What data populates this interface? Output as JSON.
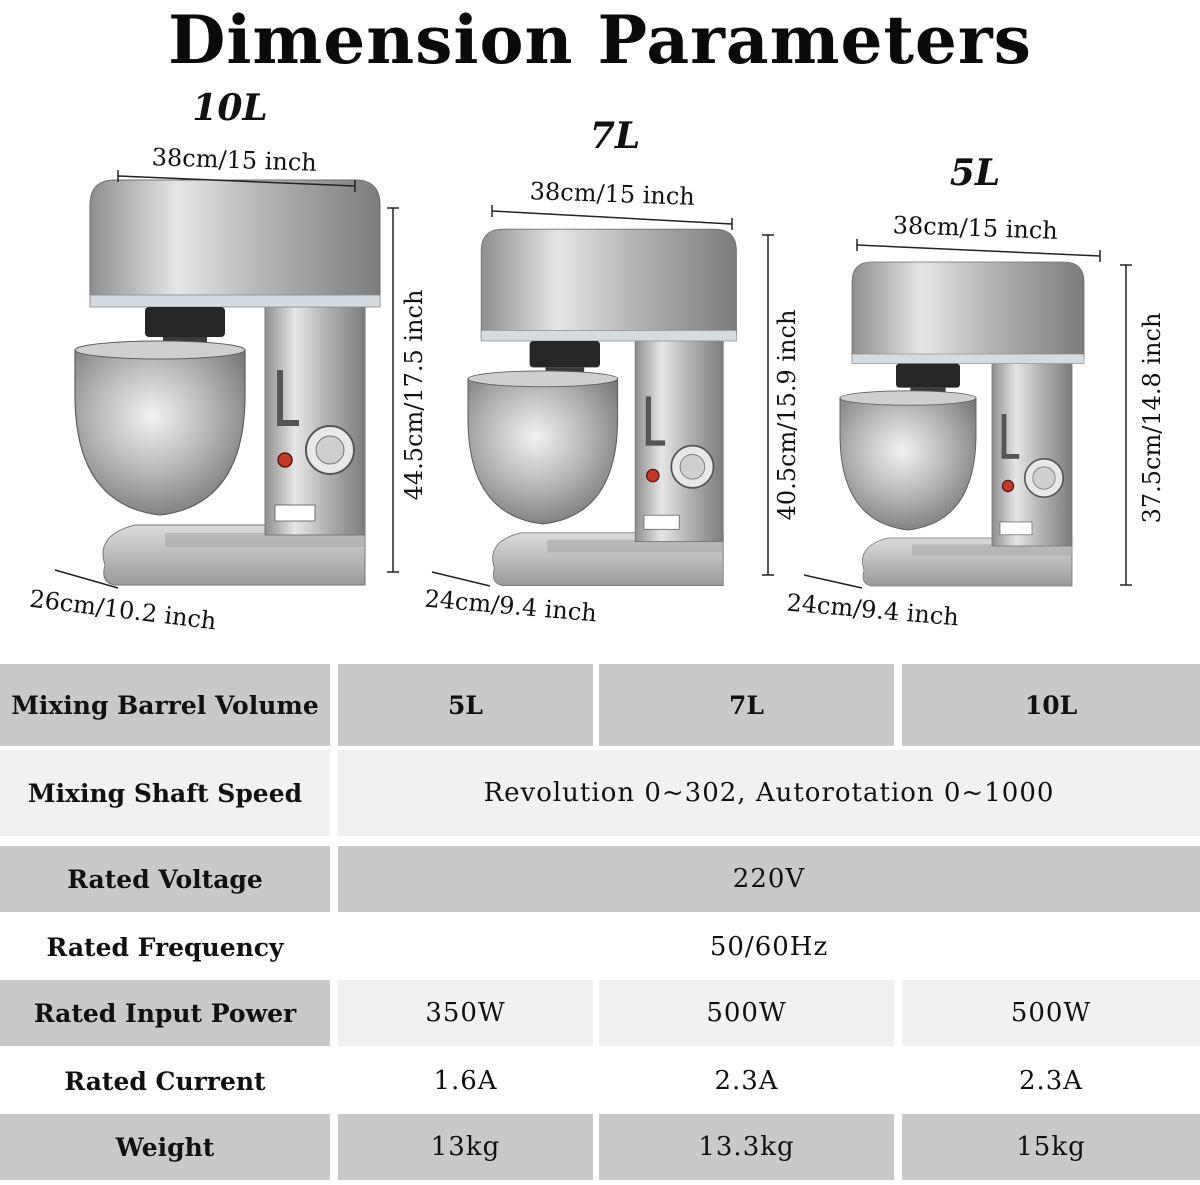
{
  "title": "Dimension Parameters",
  "mixers": [
    {
      "label": "10L",
      "width": "38cm/15 inch",
      "height": "44.5cm/17.5 inch",
      "depth": "26cm/10.2 inch"
    },
    {
      "label": "7L",
      "width": "38cm/15 inch",
      "height": "40.5cm/15.9 inch",
      "depth": "24cm/9.4 inch"
    },
    {
      "label": "5L",
      "width": "38cm/15 inch",
      "height": "37.5cm/14.8 inch",
      "depth": "24cm/9.4 inch"
    }
  ],
  "specs": {
    "volume": {
      "label": "Mixing Barrel Volume",
      "values": [
        "5L",
        "7L",
        "10L"
      ]
    },
    "speed": {
      "label": "Mixing Shaft Speed",
      "value": "Revolution 0~302, Autorotation 0~1000"
    },
    "voltage": {
      "label": "Rated Voltage",
      "value": "220V"
    },
    "frequency": {
      "label": "Rated Frequency",
      "value": "50/60Hz"
    },
    "power": {
      "label": "Rated Input Power",
      "values": [
        "350W",
        "500W",
        "500W"
      ]
    },
    "current": {
      "label": "Rated Current",
      "values": [
        "1.6A",
        "2.3A",
        "2.3A"
      ]
    },
    "weight": {
      "label": "Weight",
      "values": [
        "13kg",
        "13.3kg",
        "15kg"
      ]
    }
  },
  "colors": {
    "table_dark": "#c9c9c9",
    "table_light": "#f1f1f1",
    "steel": "#b8b8b8"
  }
}
